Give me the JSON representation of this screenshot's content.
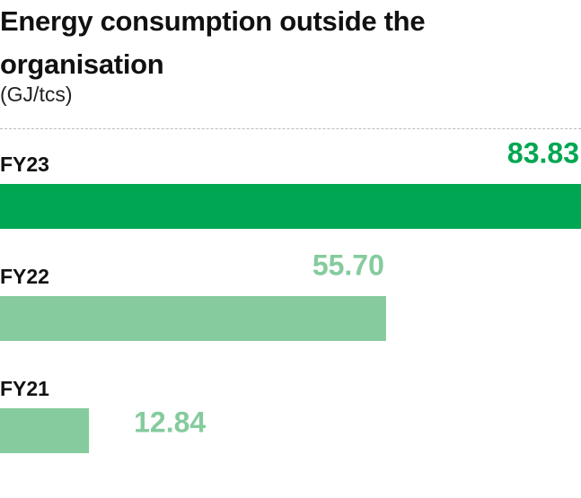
{
  "chart_data": {
    "type": "bar",
    "orientation": "horizontal",
    "title": "Energy consumption outside the organisation",
    "subtitle": "(GJ/tcs)",
    "categories": [
      "FY23",
      "FY22",
      "FY21"
    ],
    "values": [
      83.83,
      55.7,
      12.84
    ],
    "value_labels": [
      "83.83",
      "55.70",
      "12.84"
    ],
    "colors": [
      "#00a651",
      "#85cb9d",
      "#85cb9d"
    ]
  }
}
